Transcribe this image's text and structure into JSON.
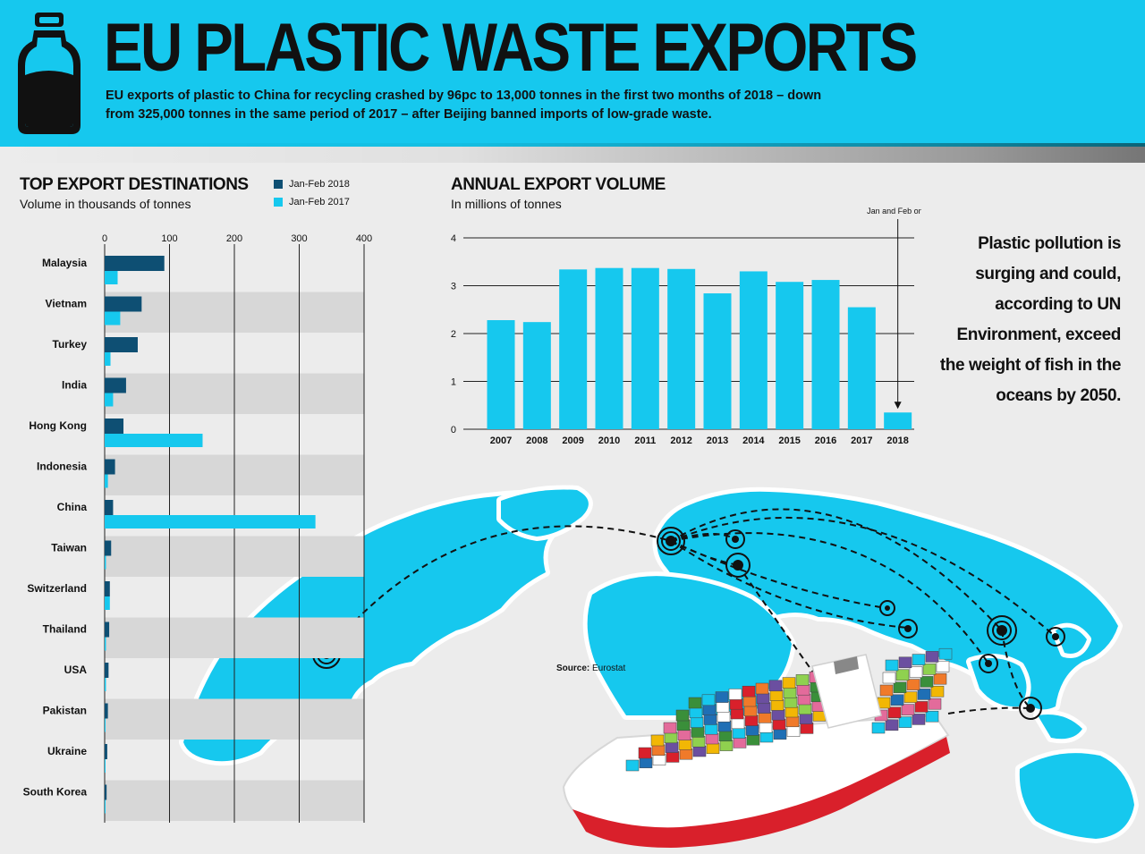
{
  "header": {
    "title": "EU PLASTIC WASTE EXPORTS",
    "intro": "EU exports of plastic to China for recycling crashed by 96pc to 13,000 tonnes in the first two months of 2018 – down from 325,000 tonnes in the same period of 2017 – after Beijing banned imports of low-grade waste."
  },
  "colors": {
    "accent": "#16c8ee",
    "dark_series": "#0e4f73",
    "light_series": "#16c8ee",
    "ship_hull": "#d9202b"
  },
  "icons": [
    "bottle-icon",
    "location-marker-icon",
    "container-ship-icon",
    "world-map-icon"
  ],
  "quote": "Plastic pollution is surging and could, according to UN Environment, exceed the weight of fish in the oceans by 2050.",
  "source": {
    "label": "Source:",
    "value": "Eurostat"
  },
  "chart_data": [
    {
      "type": "bar",
      "orientation": "horizontal",
      "title": "TOP EXPORT DESTINATIONS",
      "subtitle": "Volume in thousands of tonnes",
      "categories": [
        "Malaysia",
        "Vietnam",
        "Turkey",
        "India",
        "Hong Kong",
        "Indonesia",
        "China",
        "Taiwan",
        "Switzerland",
        "Thailand",
        "USA",
        "Pakistan",
        "Ukraine",
        "South Korea"
      ],
      "series": [
        {
          "name": "Jan-Feb 2018",
          "color": "#0e4f73",
          "values": [
            92,
            57,
            51,
            33,
            29,
            16,
            13,
            10,
            8,
            7,
            6,
            5,
            4,
            3
          ]
        },
        {
          "name": "Jan-Feb 2017",
          "color": "#16c8ee",
          "values": [
            20,
            24,
            9,
            13,
            151,
            5,
            325,
            2,
            8,
            2,
            2,
            1,
            1,
            1
          ]
        }
      ],
      "xticks": [
        "0",
        "100",
        "200",
        "300",
        "400"
      ],
      "xlim": [
        0,
        400
      ],
      "grid": true,
      "legend": "top-right"
    },
    {
      "type": "bar",
      "title": "ANNUAL EXPORT VOLUME",
      "subtitle": "In millions of tonnes",
      "categories": [
        "2007",
        "2008",
        "2009",
        "2010",
        "2011",
        "2012",
        "2013",
        "2014",
        "2015",
        "2016",
        "2017",
        "2018"
      ],
      "values": [
        2.28,
        2.24,
        3.34,
        3.37,
        3.37,
        3.35,
        2.84,
        3.3,
        3.08,
        3.12,
        2.55,
        0.35
      ],
      "yticks": [
        "0",
        "1",
        "2",
        "3",
        "4"
      ],
      "ylim": [
        0,
        4
      ],
      "grid": true,
      "annotation": "Jan and Feb only",
      "annotation_target": "2018"
    }
  ]
}
